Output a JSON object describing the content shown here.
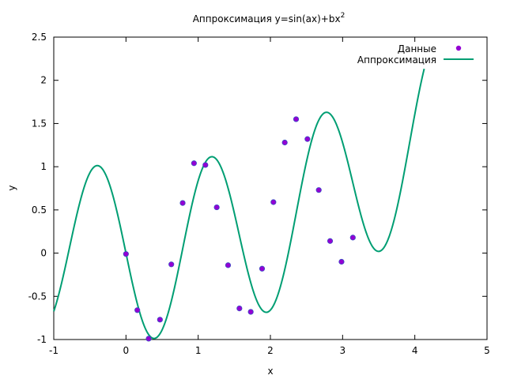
{
  "chart_data": {
    "type": "scatter",
    "title_main": "Аппроксимация y=sin(ax)+bx",
    "title_sup": "2",
    "xlabel": "x",
    "ylabel": "y",
    "xlim": [
      -1,
      5
    ],
    "ylim": [
      -1,
      2.5
    ],
    "xticks": [
      -1,
      0,
      1,
      2,
      3,
      4,
      5
    ],
    "xtick_labels": [
      "-1",
      "0",
      "1",
      "2",
      "3",
      "4",
      "5"
    ],
    "yticks": [
      -1,
      -0.5,
      0,
      0.5,
      1,
      1.5,
      2,
      2.5
    ],
    "ytick_labels": [
      "-1",
      "-0.5",
      "0",
      "0.5",
      "1",
      "1.5",
      "2",
      "2.5"
    ],
    "grid": false,
    "legend_position": "top-right",
    "series": [
      {
        "name": "Данные",
        "kind": "points",
        "color": "#9400d3",
        "x": [
          0.0,
          0.157,
          0.314,
          0.471,
          0.628,
          0.785,
          0.942,
          1.1,
          1.257,
          1.414,
          1.571,
          1.728,
          1.885,
          2.042,
          2.199,
          2.356,
          2.513,
          2.67,
          2.827,
          2.985,
          3.142
        ],
        "y": [
          -0.01,
          -0.66,
          -0.99,
          -0.77,
          -0.13,
          0.58,
          1.04,
          1.02,
          0.53,
          -0.14,
          -0.64,
          -0.68,
          -0.18,
          0.59,
          1.28,
          1.55,
          1.32,
          0.73,
          0.14,
          -0.1,
          0.18
        ]
      },
      {
        "name": "Аппроксимация",
        "kind": "line",
        "color": "#009e73",
        "function": "sin(a*x)+b*x^2",
        "a": -4.0,
        "b": 0.0825,
        "x_range": [
          -1,
          4.13
        ]
      }
    ]
  }
}
